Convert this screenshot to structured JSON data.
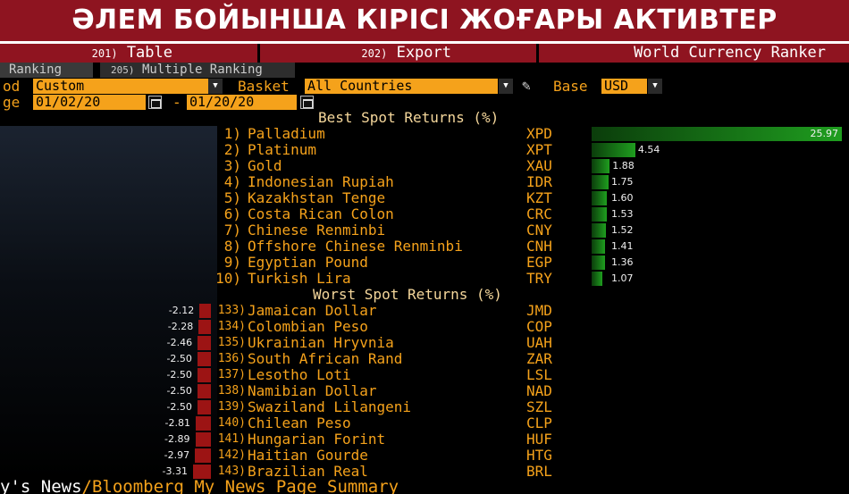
{
  "banner": {
    "title": "ӘЛЕМ БОЙЫНША КІРІСІ ЖОҒАРЫ АКТИВТЕР"
  },
  "menu": [
    {
      "num": "201)",
      "label": "Table"
    },
    {
      "num": "202)",
      "label": "Export"
    },
    {
      "num": "",
      "label": "World Currency Ranker"
    }
  ],
  "tabs": [
    {
      "num": "",
      "label": "Ranking"
    },
    {
      "num": "205)",
      "label": "Multiple Ranking"
    }
  ],
  "controls": {
    "period_label": "od",
    "period_value": "Custom",
    "basket_label": "Basket",
    "basket_value": "All Countries",
    "base_label": "Base",
    "base_value": "USD",
    "range_label": "ge",
    "start_date": "01/02/20",
    "dash": "-",
    "end_date": "01/20/20"
  },
  "best": {
    "title": "Best Spot Returns (%)",
    "rows": [
      {
        "rank": "1)",
        "name": "Palladium",
        "code": "XPD",
        "value": "25.97",
        "num": 25.97
      },
      {
        "rank": "2)",
        "name": "Platinum",
        "code": "XPT",
        "value": "4.54",
        "num": 4.54
      },
      {
        "rank": "3)",
        "name": "Gold",
        "code": "XAU",
        "value": "1.88",
        "num": 1.88
      },
      {
        "rank": "4)",
        "name": "Indonesian Rupiah",
        "code": "IDR",
        "value": "1.75",
        "num": 1.75
      },
      {
        "rank": "5)",
        "name": "Kazakhstan Tenge",
        "code": "KZT",
        "value": "1.60",
        "num": 1.6
      },
      {
        "rank": "6)",
        "name": "Costa Rican Colon",
        "code": "CRC",
        "value": "1.53",
        "num": 1.53
      },
      {
        "rank": "7)",
        "name": "Chinese Renminbi",
        "code": "CNY",
        "value": "1.52",
        "num": 1.52
      },
      {
        "rank": "8)",
        "name": "Offshore Chinese Renminbi",
        "code": "CNH",
        "value": "1.41",
        "num": 1.41
      },
      {
        "rank": "9)",
        "name": "Egyptian Pound",
        "code": "EGP",
        "value": "1.36",
        "num": 1.36
      },
      {
        "rank": "10)",
        "name": "Turkish Lira",
        "code": "TRY",
        "value": "1.07",
        "num": 1.07
      }
    ]
  },
  "worst": {
    "title": "Worst Spot Returns (%)",
    "rows": [
      {
        "rank": "133)",
        "name": "Jamaican Dollar",
        "code": "JMD",
        "value": "-2.12",
        "num": -2.12
      },
      {
        "rank": "134)",
        "name": "Colombian Peso",
        "code": "COP",
        "value": "-2.28",
        "num": -2.28
      },
      {
        "rank": "135)",
        "name": "Ukrainian Hryvnia",
        "code": "UAH",
        "value": "-2.46",
        "num": -2.46
      },
      {
        "rank": "136)",
        "name": "South African Rand",
        "code": "ZAR",
        "value": "-2.50",
        "num": -2.5
      },
      {
        "rank": "137)",
        "name": "Lesotho Loti",
        "code": "LSL",
        "value": "-2.50",
        "num": -2.5
      },
      {
        "rank": "138)",
        "name": "Namibian Dollar",
        "code": "NAD",
        "value": "-2.50",
        "num": -2.5
      },
      {
        "rank": "139)",
        "name": "Swaziland Lilangeni",
        "code": "SZL",
        "value": "-2.50",
        "num": -2.5
      },
      {
        "rank": "140)",
        "name": "Chilean Peso",
        "code": "CLP",
        "value": "-2.81",
        "num": -2.81
      },
      {
        "rank": "141)",
        "name": "Hungarian Forint",
        "code": "HUF",
        "value": "-2.89",
        "num": -2.89
      },
      {
        "rank": "142)",
        "name": "Haitian Gourde",
        "code": "HTG",
        "value": "-2.97",
        "num": -2.97
      },
      {
        "rank": "143)",
        "name": "Brazilian Real",
        "code": "BRL",
        "value": "-3.31",
        "num": -3.31
      }
    ]
  },
  "ticker": {
    "lead": "y's News",
    "rest": "/Bloomberg My News Page Summary"
  },
  "colors": {
    "accent": "#f5a21b",
    "positive": "#1f9e1f",
    "negative": "#9c1414",
    "banner": "#8e1420"
  }
}
